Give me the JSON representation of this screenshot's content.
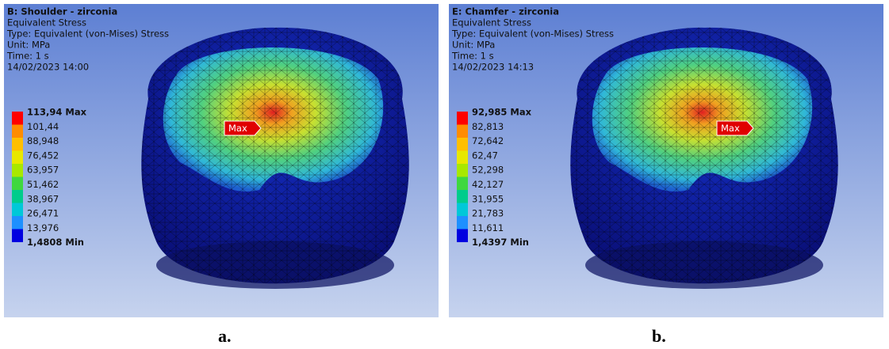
{
  "panels": [
    {
      "header": [
        "B: Shoulder - zirconia",
        "Equivalent Stress",
        "Type: Equivalent (von-Mises) Stress",
        "Unit: MPa",
        "Time: 1 s",
        "14/02/2023 14:00"
      ],
      "legend": [
        "113,94 Max",
        "101,44",
        "88,948",
        "76,452",
        "63,957",
        "51,462",
        "38,967",
        "26,471",
        "13,976",
        "1,4808 Min"
      ],
      "marker": "Max",
      "caption": "a."
    },
    {
      "header": [
        "E: Chamfer - zirconia",
        "Equivalent Stress",
        "Type: Equivalent (von-Mises) Stress",
        "Unit: MPa",
        "Time: 1 s",
        "14/02/2023 14:13"
      ],
      "legend": [
        "92,985 Max",
        "82,813",
        "72,642",
        "62,47",
        "52,298",
        "42,127",
        "31,955",
        "21,783",
        "11,611",
        "1,4397 Min"
      ],
      "marker": "Max",
      "caption": "b."
    }
  ]
}
